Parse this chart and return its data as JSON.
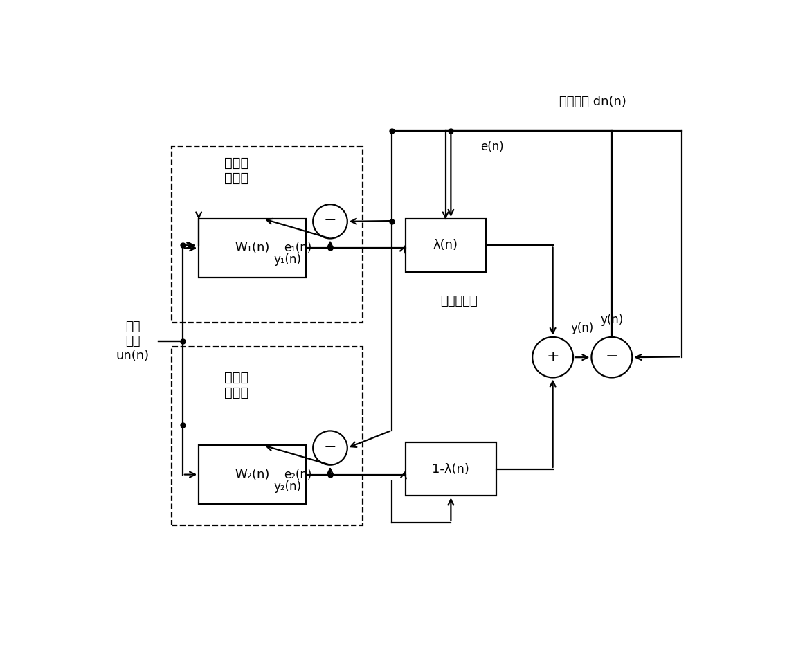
{
  "bg_color": "#ffffff",
  "line_color": "#000000",
  "label_ref": "参考\n信号\nun(n)",
  "label_input": "输入信号 dn(n)",
  "label_big_filter": "大步长\n滤波器",
  "label_small_filter": "小步长\n滤波器",
  "label_convex": "凸组合权值",
  "label_W1": "W₁(n)",
  "label_W2": "W₂(n)",
  "label_lambda": "λ(n)",
  "label_1mlambda": "1-λ(n)",
  "label_e1": "e₁(n)",
  "label_e2": "e₂(n)",
  "label_en": "e(n)",
  "label_y1": "y₁(n)",
  "label_y2": "y₂(n)",
  "label_yn": "y(n)"
}
